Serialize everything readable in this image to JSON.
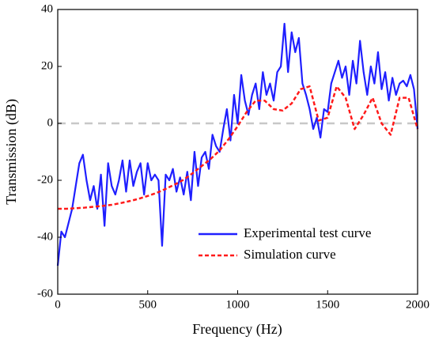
{
  "chart_data": {
    "type": "line",
    "xlabel": "Frequency (Hz)",
    "ylabel": "Transmission (dB)",
    "xlim": [
      0,
      2000
    ],
    "xticks": [
      0,
      500,
      1000,
      1500,
      2000
    ],
    "ylim": [
      -60,
      40
    ],
    "yticks": [
      -60,
      -40,
      -20,
      0,
      20,
      40
    ],
    "reference_line": 0,
    "legend": "lower right",
    "series": [
      {
        "name": "Experimental test curve",
        "color": "#1f1fff",
        "style": "solid",
        "x": [
          0,
          20,
          40,
          60,
          80,
          100,
          120,
          140,
          160,
          180,
          200,
          220,
          240,
          260,
          280,
          300,
          320,
          340,
          360,
          380,
          400,
          420,
          440,
          460,
          480,
          500,
          520,
          540,
          560,
          580,
          600,
          620,
          640,
          660,
          680,
          700,
          720,
          740,
          760,
          780,
          800,
          820,
          840,
          860,
          880,
          900,
          920,
          940,
          960,
          980,
          1000,
          1020,
          1040,
          1060,
          1080,
          1100,
          1120,
          1140,
          1160,
          1180,
          1200,
          1220,
          1240,
          1260,
          1280,
          1300,
          1320,
          1340,
          1360,
          1380,
          1400,
          1420,
          1440,
          1460,
          1480,
          1500,
          1520,
          1540,
          1560,
          1580,
          1600,
          1620,
          1640,
          1660,
          1680,
          1700,
          1720,
          1740,
          1760,
          1780,
          1800,
          1820,
          1840,
          1860,
          1880,
          1900,
          1920,
          1940,
          1960,
          1980,
          2000
        ],
        "values": [
          -50,
          -38,
          -40,
          -35,
          -30,
          -22,
          -14,
          -11,
          -20,
          -27,
          -22,
          -30,
          -18,
          -36,
          -14,
          -22,
          -25,
          -20,
          -13,
          -24,
          -13,
          -22,
          -17,
          -14,
          -25,
          -14,
          -20,
          -18,
          -20,
          -43,
          -18,
          -20,
          -16,
          -24,
          -19,
          -25,
          -17,
          -27,
          -10,
          -22,
          -12,
          -10,
          -16,
          -4,
          -8,
          -10,
          -2,
          5,
          -6,
          10,
          0,
          17,
          8,
          3,
          10,
          14,
          5,
          18,
          10,
          14,
          8,
          18,
          20,
          35,
          18,
          32,
          25,
          30,
          14,
          10,
          5,
          -2,
          2,
          -5,
          5,
          4,
          14,
          18,
          22,
          16,
          20,
          10,
          22,
          14,
          29,
          18,
          10,
          20,
          14,
          25,
          12,
          18,
          8,
          16,
          10,
          14,
          15,
          13,
          17,
          12,
          -2
        ]
      },
      {
        "name": "Simulation curve",
        "color": "#ff1a1a",
        "style": "dashed",
        "x": [
          0,
          50,
          100,
          150,
          200,
          250,
          300,
          350,
          400,
          450,
          500,
          550,
          600,
          650,
          700,
          750,
          800,
          850,
          900,
          950,
          1000,
          1050,
          1100,
          1150,
          1200,
          1250,
          1300,
          1350,
          1400,
          1450,
          1500,
          1550,
          1600,
          1650,
          1700,
          1750,
          1800,
          1850,
          1900,
          1950,
          2000
        ],
        "values": [
          -30,
          -30,
          -29.8,
          -29.6,
          -29.3,
          -29,
          -28.6,
          -28,
          -27.3,
          -26.5,
          -25.5,
          -24.4,
          -23,
          -21.5,
          -19.8,
          -17.5,
          -15,
          -12.5,
          -9.5,
          -5.5,
          -1,
          4,
          8,
          8,
          5,
          4.5,
          7,
          12,
          13,
          1,
          2,
          13,
          9,
          -2,
          3,
          9,
          0,
          -4,
          9,
          9,
          -2
        ]
      }
    ]
  }
}
